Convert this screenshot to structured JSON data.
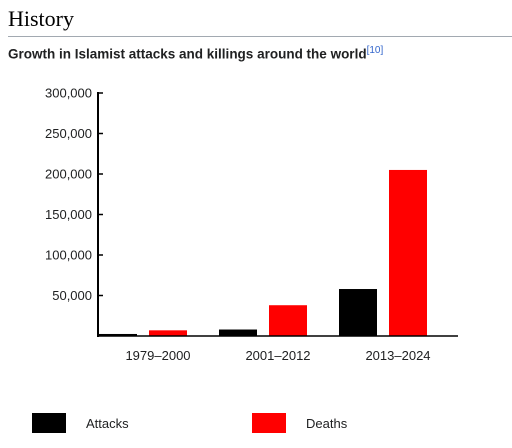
{
  "section": {
    "heading": "History"
  },
  "caption": {
    "text": "Growth in Islamist attacks and killings around the world",
    "cite": "[10]"
  },
  "colors": {
    "attacks": "#000000",
    "deaths": "#ff0000"
  },
  "chart_data": {
    "type": "bar",
    "categories": [
      "1979–2000",
      "2001–2012",
      "2013–2024"
    ],
    "series": [
      {
        "name": "Attacks",
        "values": [
          2500,
          8000,
          58000
        ]
      },
      {
        "name": "Deaths",
        "values": [
          7000,
          38000,
          205000
        ]
      }
    ],
    "yticks": [
      50000,
      100000,
      150000,
      200000,
      250000,
      300000
    ],
    "ytick_labels": [
      "50,000",
      "100,000",
      "150,000",
      "200,000",
      "250,000",
      "300,000"
    ],
    "ylim": [
      0,
      300000
    ],
    "legend_position": "bottom"
  }
}
